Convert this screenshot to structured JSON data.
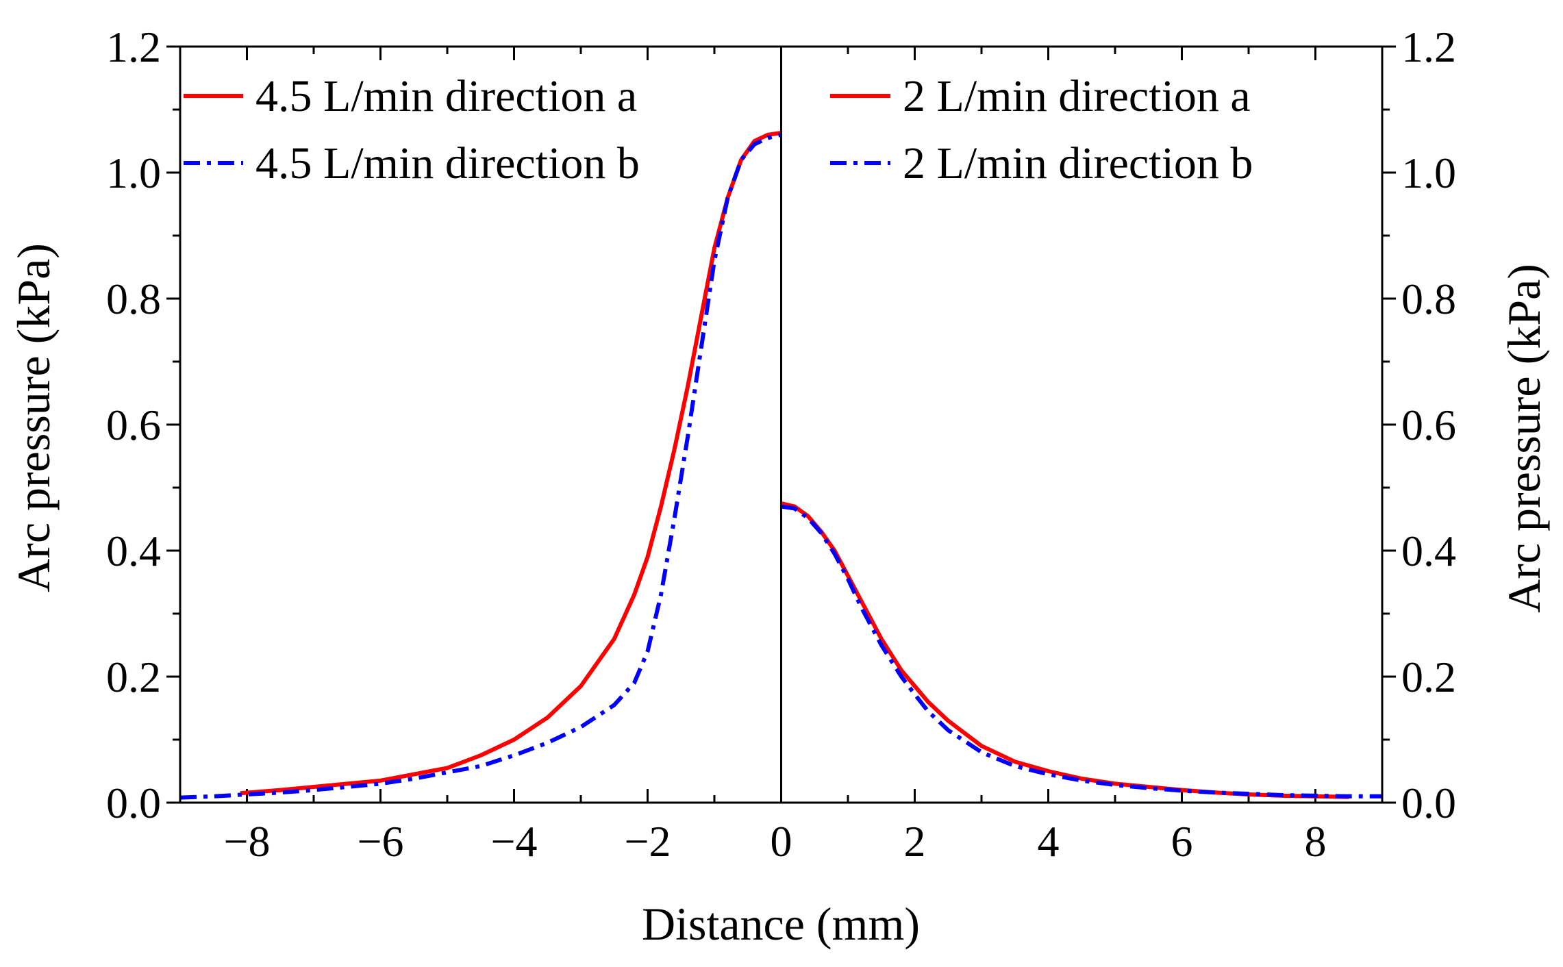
{
  "chart_data": {
    "type": "line",
    "title": "",
    "xlabel": "Distance (mm)",
    "ylabel_left": "Arc pressure (kPa)",
    "ylabel_right": "Arc pressure (kPa)",
    "xlim": [
      -9,
      9
    ],
    "ylim": [
      0,
      1.2
    ],
    "x_ticks": [
      -8,
      -6,
      -4,
      -2,
      0,
      2,
      4,
      6,
      8
    ],
    "x_tick_labels": [
      "−8",
      "−6",
      "−4",
      "−2",
      "0",
      "2",
      "4",
      "6",
      "8"
    ],
    "y_ticks": [
      0,
      0.2,
      0.4,
      0.6,
      0.8,
      1.0,
      1.2
    ],
    "y_tick_labels": [
      "0.0",
      "0.2",
      "0.4",
      "0.6",
      "0.8",
      "1.0",
      "1.2"
    ],
    "divider_x": 0,
    "series": [
      {
        "name": "4.5 L/min direction a",
        "color": "#ff0000",
        "style": "solid",
        "x": [
          -8.1,
          -7.5,
          -7,
          -6.5,
          -6,
          -5.5,
          -5,
          -4.5,
          -4,
          -3.5,
          -3,
          -2.5,
          -2.2,
          -2,
          -1.8,
          -1.6,
          -1.4,
          -1.2,
          -1,
          -0.8,
          -0.6,
          -0.4,
          -0.2,
          0
        ],
        "y": [
          0.015,
          0.02,
          0.025,
          0.03,
          0.035,
          0.045,
          0.055,
          0.075,
          0.1,
          0.135,
          0.185,
          0.26,
          0.33,
          0.39,
          0.47,
          0.56,
          0.66,
          0.77,
          0.88,
          0.96,
          1.02,
          1.05,
          1.06,
          1.063
        ]
      },
      {
        "name": "4.5 L/min direction b",
        "color": "#0000ff",
        "style": "dashdot",
        "x": [
          -9,
          -8.5,
          -8,
          -7.5,
          -7,
          -6.5,
          -6,
          -5.5,
          -5,
          -4.5,
          -4,
          -3.5,
          -3,
          -2.5,
          -2.2,
          -2,
          -1.8,
          -1.6,
          -1.4,
          -1.2,
          -1,
          -0.8,
          -0.6,
          -0.4,
          -0.2,
          0
        ],
        "y": [
          0.008,
          0.01,
          0.013,
          0.016,
          0.02,
          0.025,
          0.03,
          0.038,
          0.048,
          0.058,
          0.075,
          0.095,
          0.12,
          0.155,
          0.19,
          0.24,
          0.33,
          0.45,
          0.58,
          0.72,
          0.86,
          0.96,
          1.02,
          1.045,
          1.055,
          1.06
        ]
      },
      {
        "name": "2 L/min direction a",
        "color": "#ff0000",
        "style": "solid",
        "x": [
          0,
          0.2,
          0.4,
          0.6,
          0.8,
          1,
          1.2,
          1.5,
          1.8,
          2,
          2.2,
          2.5,
          3,
          3.5,
          4,
          4.5,
          5,
          5.5,
          6,
          6.5,
          7,
          7.5,
          8,
          8.5
        ],
        "y": [
          0.475,
          0.47,
          0.455,
          0.43,
          0.4,
          0.36,
          0.32,
          0.26,
          0.21,
          0.185,
          0.16,
          0.13,
          0.09,
          0.065,
          0.05,
          0.038,
          0.03,
          0.025,
          0.02,
          0.016,
          0.013,
          0.011,
          0.01,
          0.009
        ]
      },
      {
        "name": "2 L/min direction b",
        "color": "#0000ff",
        "style": "dashdot",
        "x": [
          0,
          0.2,
          0.4,
          0.6,
          0.8,
          1,
          1.2,
          1.5,
          1.8,
          2,
          2.2,
          2.5,
          3,
          3.5,
          4,
          4.5,
          5,
          5.5,
          6,
          6.5,
          7,
          7.5,
          8,
          8.5,
          9
        ],
        "y": [
          0.47,
          0.467,
          0.452,
          0.428,
          0.395,
          0.355,
          0.31,
          0.25,
          0.2,
          0.172,
          0.145,
          0.115,
          0.08,
          0.058,
          0.045,
          0.035,
          0.028,
          0.023,
          0.019,
          0.016,
          0.014,
          0.012,
          0.011,
          0.01,
          0.01
        ]
      }
    ],
    "legends": [
      {
        "position": "top-left",
        "items": [
          "4.5 L/min direction a",
          "4.5 L/min direction b"
        ]
      },
      {
        "position": "top-right",
        "items": [
          "2 L/min direction a",
          "2 L/min direction b"
        ]
      }
    ]
  }
}
